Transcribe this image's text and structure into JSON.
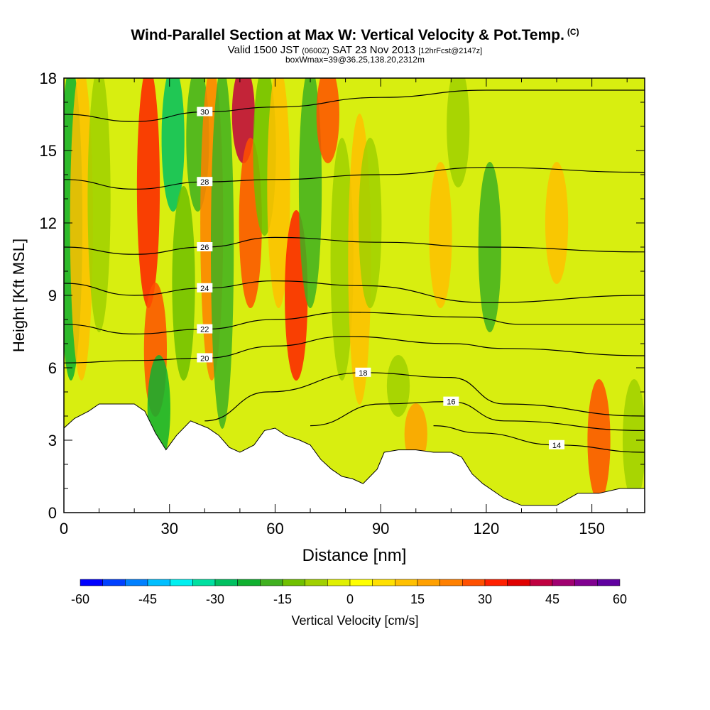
{
  "header": {
    "title": "Wind-Parallel Section at Max W: Vertical Velocity & Pot.Temp.",
    "title_unit": "(C)",
    "subtitle_a": "Valid 1500 JST",
    "subtitle_b": "(0600Z)",
    "subtitle_c": "SAT 23 Nov 2013",
    "subtitle_d": "[12hrFcst@2147z]",
    "subtitle_line2": "boxWmax=39@36.25,138.20,2312m"
  },
  "chart_data": {
    "type": "heatmap",
    "title": "Wind-Parallel Section at Max W: Vertical Velocity & Pot.Temp.",
    "xlabel": "Distance [nm]",
    "ylabel": "Height [Kft MSL]",
    "xlim": [
      0,
      165
    ],
    "ylim": [
      0,
      18
    ],
    "x_ticks": [
      0,
      30,
      60,
      90,
      120,
      150
    ],
    "y_ticks": [
      0,
      3,
      6,
      9,
      12,
      15,
      18
    ],
    "colorbar": {
      "label": "Vertical Velocity [cm/s]",
      "ticks": [
        -60,
        -45,
        -30,
        -15,
        0,
        15,
        30,
        45,
        60
      ],
      "range": [
        -60,
        60
      ],
      "colors": [
        "#0000ff",
        "#0040ff",
        "#0080ff",
        "#00bfff",
        "#00f0f0",
        "#00e0a0",
        "#00c060",
        "#10b030",
        "#40b020",
        "#70c000",
        "#a0d000",
        "#e0f000",
        "#ffff00",
        "#ffe000",
        "#ffc000",
        "#ffa000",
        "#ff8000",
        "#ff5000",
        "#ff2000",
        "#e00000",
        "#c00040",
        "#a00070",
        "#800090",
        "#6000a0"
      ]
    },
    "velocity_columns": [
      {
        "x": 2,
        "w": -22,
        "y0": 6,
        "y1": 18
      },
      {
        "x": 5,
        "w": 10,
        "y0": 6,
        "y1": 18
      },
      {
        "x": 10,
        "w": -8,
        "y0": 8,
        "y1": 18
      },
      {
        "x": 24,
        "w": 30,
        "y0": 9,
        "y1": 18
      },
      {
        "x": 26,
        "w": 25,
        "y0": 4.5,
        "y1": 9
      },
      {
        "x": 27,
        "w": -25,
        "y0": 2.6,
        "y1": 6
      },
      {
        "x": 31,
        "w": -30,
        "y0": 13,
        "y1": 18
      },
      {
        "x": 34,
        "w": -15,
        "y0": 6,
        "y1": 13
      },
      {
        "x": 38,
        "w": -20,
        "y0": 13,
        "y1": 18
      },
      {
        "x": 42,
        "w": 20,
        "y0": 6,
        "y1": 18
      },
      {
        "x": 45,
        "w": -18,
        "y0": 4,
        "y1": 18
      },
      {
        "x": 51,
        "w": 40,
        "y0": 15,
        "y1": 18
      },
      {
        "x": 53,
        "w": 25,
        "y0": 9,
        "y1": 15
      },
      {
        "x": 57,
        "w": -15,
        "y0": 12,
        "y1": 18
      },
      {
        "x": 61,
        "w": 12,
        "y0": 9,
        "y1": 18
      },
      {
        "x": 66,
        "w": 30,
        "y0": 6,
        "y1": 12
      },
      {
        "x": 70,
        "w": -20,
        "y0": 9,
        "y1": 18
      },
      {
        "x": 75,
        "w": 25,
        "y0": 15,
        "y1": 18
      },
      {
        "x": 79,
        "w": -8,
        "y0": 6,
        "y1": 15
      },
      {
        "x": 84,
        "w": 10,
        "y0": 5,
        "y1": 16
      },
      {
        "x": 87,
        "w": -10,
        "y0": 9,
        "y1": 15
      },
      {
        "x": 95,
        "w": -8,
        "y0": 4.5,
        "y1": 6
      },
      {
        "x": 100,
        "w": 15,
        "y0": 2.5,
        "y1": 4
      },
      {
        "x": 107,
        "w": 10,
        "y0": 9,
        "y1": 14
      },
      {
        "x": 112,
        "w": -6,
        "y0": 14,
        "y1": 18
      },
      {
        "x": 121,
        "w": -18,
        "y0": 8,
        "y1": 14
      },
      {
        "x": 140,
        "w": 10,
        "y0": 10,
        "y1": 14
      },
      {
        "x": 152,
        "w": 25,
        "y0": 1,
        "y1": 5
      },
      {
        "x": 162,
        "w": -10,
        "y0": 1,
        "y1": 5
      }
    ],
    "isentropes": [
      {
        "label": "14",
        "points": [
          [
            105,
            3.6
          ],
          [
            118,
            3.3
          ],
          [
            140,
            2.8
          ],
          [
            165,
            2.5
          ]
        ]
      },
      {
        "label": "16",
        "points": [
          [
            70,
            3.6
          ],
          [
            90,
            4.5
          ],
          [
            110,
            4.6
          ],
          [
            125,
            3.8
          ],
          [
            165,
            3.4
          ]
        ]
      },
      {
        "label": "18",
        "points": [
          [
            40,
            3.8
          ],
          [
            58,
            5.0
          ],
          [
            85,
            5.8
          ],
          [
            110,
            5.6
          ],
          [
            125,
            4.5
          ],
          [
            165,
            4.0
          ]
        ]
      },
      {
        "label": "20",
        "points": [
          [
            0,
            6.2
          ],
          [
            20,
            6.3
          ],
          [
            40,
            6.4
          ],
          [
            60,
            6.9
          ],
          [
            80,
            7.3
          ],
          [
            110,
            7.0
          ],
          [
            125,
            6.8
          ],
          [
            165,
            6.5
          ]
        ]
      },
      {
        "label": "22",
        "points": [
          [
            0,
            7.8
          ],
          [
            20,
            7.4
          ],
          [
            40,
            7.6
          ],
          [
            60,
            8.0
          ],
          [
            80,
            8.3
          ],
          [
            115,
            8.1
          ],
          [
            130,
            7.8
          ],
          [
            165,
            7.8
          ]
        ]
      },
      {
        "label": "24",
        "points": [
          [
            0,
            9.5
          ],
          [
            20,
            9.0
          ],
          [
            40,
            9.3
          ],
          [
            60,
            9.6
          ],
          [
            85,
            9.4
          ],
          [
            120,
            8.7
          ],
          [
            165,
            9.0
          ]
        ]
      },
      {
        "label": "26",
        "points": [
          [
            0,
            11.0
          ],
          [
            20,
            10.7
          ],
          [
            40,
            11.0
          ],
          [
            60,
            11.4
          ],
          [
            90,
            11.2
          ],
          [
            120,
            11.0
          ],
          [
            165,
            10.8
          ]
        ]
      },
      {
        "label": "28",
        "points": [
          [
            0,
            13.8
          ],
          [
            20,
            13.4
          ],
          [
            40,
            13.7
          ],
          [
            60,
            13.8
          ],
          [
            90,
            14.0
          ],
          [
            120,
            14.3
          ],
          [
            165,
            14.1
          ]
        ]
      },
      {
        "label": "30",
        "points": [
          [
            0,
            16.5
          ],
          [
            20,
            16.2
          ],
          [
            40,
            16.6
          ],
          [
            60,
            16.8
          ],
          [
            90,
            17.2
          ],
          [
            120,
            17.5
          ],
          [
            165,
            17.5
          ]
        ]
      }
    ],
    "terrain_profile": [
      [
        0,
        3.5
      ],
      [
        3,
        3.9
      ],
      [
        7,
        4.2
      ],
      [
        10,
        4.5
      ],
      [
        20,
        4.5
      ],
      [
        23,
        4.2
      ],
      [
        26,
        3.3
      ],
      [
        29,
        2.6
      ],
      [
        32,
        3.2
      ],
      [
        36,
        3.8
      ],
      [
        41,
        3.5
      ],
      [
        44,
        3.2
      ],
      [
        47,
        2.7
      ],
      [
        50,
        2.5
      ],
      [
        54,
        2.8
      ],
      [
        57,
        3.4
      ],
      [
        60,
        3.5
      ],
      [
        63,
        3.2
      ],
      [
        67,
        3.0
      ],
      [
        70,
        2.8
      ],
      [
        73,
        2.2
      ],
      [
        76,
        1.8
      ],
      [
        79,
        1.5
      ],
      [
        82,
        1.4
      ],
      [
        85,
        1.2
      ],
      [
        87,
        1.5
      ],
      [
        89,
        1.8
      ],
      [
        91,
        2.5
      ],
      [
        95,
        2.6
      ],
      [
        100,
        2.6
      ],
      [
        105,
        2.5
      ],
      [
        110,
        2.5
      ],
      [
        113,
        2.3
      ],
      [
        116,
        1.6
      ],
      [
        119,
        1.2
      ],
      [
        125,
        0.6
      ],
      [
        130,
        0.3
      ],
      [
        140,
        0.3
      ],
      [
        146,
        0.8
      ],
      [
        152,
        0.8
      ],
      [
        158,
        1.0
      ],
      [
        165,
        1.0
      ]
    ]
  }
}
